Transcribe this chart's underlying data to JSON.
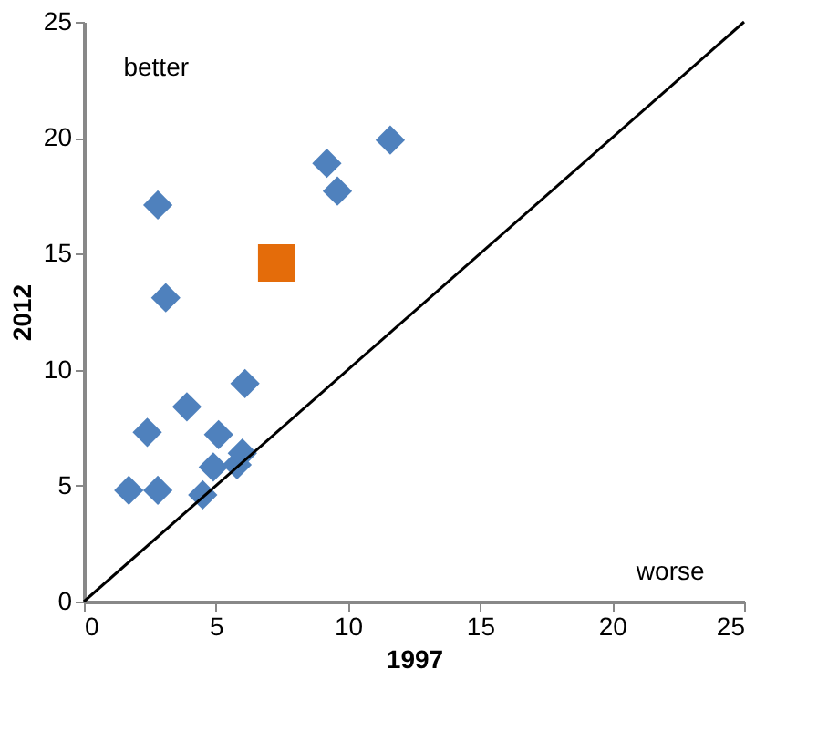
{
  "chart_data": {
    "type": "scatter",
    "xlabel": "1997",
    "ylabel": "2012",
    "xlim": [
      0,
      25
    ],
    "ylim": [
      0,
      25
    ],
    "xticks": [
      0,
      5,
      10,
      15,
      20,
      25
    ],
    "yticks": [
      0,
      5,
      10,
      15,
      20,
      25
    ],
    "grid": false,
    "annotations": [
      "better",
      "worse"
    ],
    "series": [
      {
        "marker": "diamond",
        "color": "#4f81bd",
        "x": [
          1.7,
          2.8,
          2.4,
          2.8,
          3.1,
          3.9,
          4.5,
          4.9,
          5.1,
          5.8,
          6.0,
          6.1,
          9.2,
          9.6,
          11.6
        ],
        "values": [
          4.8,
          4.8,
          7.3,
          17.1,
          13.1,
          8.4,
          4.6,
          5.8,
          7.2,
          5.9,
          6.4,
          9.4,
          18.9,
          17.7,
          19.9
        ]
      },
      {
        "marker": "square",
        "color": "#e46c0a",
        "x": [
          7.3
        ],
        "values": [
          14.6
        ]
      },
      {
        "type": "line",
        "marker": "none",
        "color": "#000000",
        "x": [
          0,
          25
        ],
        "values": [
          0,
          25
        ]
      }
    ]
  }
}
